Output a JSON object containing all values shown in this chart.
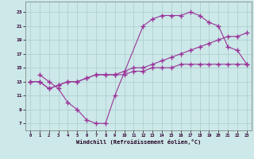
{
  "bg_color": "#cce8e8",
  "grid_color": "#aacccc",
  "line_color": "#993399",
  "xlabel": "Windchill (Refroidissement éolien,°C)",
  "xlim": [
    -0.5,
    23.5
  ],
  "ylim": [
    6.0,
    24.5
  ],
  "xticks": [
    0,
    1,
    2,
    3,
    4,
    5,
    6,
    7,
    8,
    9,
    10,
    11,
    12,
    13,
    14,
    15,
    16,
    17,
    18,
    19,
    20,
    21,
    22,
    23
  ],
  "yticks": [
    7,
    9,
    11,
    13,
    15,
    17,
    19,
    21,
    23
  ],
  "curve_x": [
    1,
    2,
    3,
    4,
    5,
    6,
    7,
    8,
    9,
    12,
    13,
    14,
    15,
    16,
    17,
    18,
    19,
    20,
    21,
    22,
    23
  ],
  "curve_y": [
    14,
    13,
    12,
    10,
    9,
    7.5,
    7,
    7,
    11,
    21,
    22,
    22.5,
    22.5,
    22.5,
    23,
    22.5,
    21.5,
    21,
    18,
    17.5,
    15.5
  ],
  "diag_upper_x": [
    0,
    1,
    2,
    3,
    4,
    5,
    6,
    7,
    8,
    9,
    10,
    11,
    12,
    13,
    14,
    15,
    16,
    17,
    18,
    19,
    20,
    21,
    22,
    23
  ],
  "diag_upper_y": [
    13,
    13,
    12,
    12.5,
    13,
    13,
    13.5,
    14,
    14,
    14,
    14.5,
    15,
    15,
    15.5,
    16,
    16.5,
    17,
    17.5,
    18,
    18.5,
    19,
    19.5,
    19.5,
    20
  ],
  "diag_lower_x": [
    0,
    1,
    2,
    3,
    4,
    5,
    6,
    7,
    8,
    9,
    10,
    11,
    12,
    13,
    14,
    15,
    16,
    17,
    18,
    19,
    20,
    21,
    22,
    23
  ],
  "diag_lower_y": [
    13,
    13,
    12,
    12.5,
    13,
    13,
    13.5,
    14,
    14,
    14,
    14,
    14.5,
    14.5,
    15,
    15,
    15,
    15.5,
    15.5,
    15.5,
    15.5,
    15.5,
    15.5,
    15.5,
    15.5
  ]
}
